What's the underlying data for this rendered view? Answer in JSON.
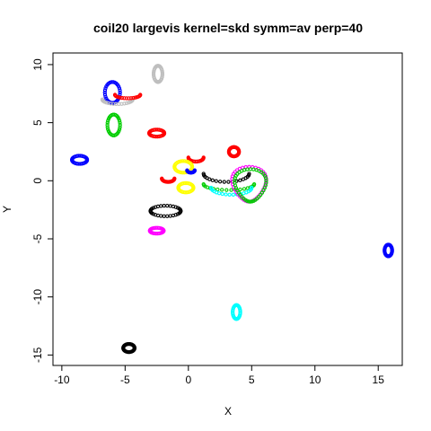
{
  "chart_data": {
    "type": "scatter",
    "title": "coil20 largevis kernel=skd symm=av perp=40",
    "xlabel": "X",
    "ylabel": "Y",
    "xlim": [
      -10.7,
      16.9
    ],
    "ylim": [
      -15.9,
      11.0
    ],
    "x_ticks": [
      -10,
      -5,
      0,
      5,
      10,
      15
    ],
    "y_ticks": [
      -15,
      -10,
      -5,
      0,
      5,
      10
    ],
    "grid": false,
    "legend": "none",
    "series": [
      {
        "color": "#0000ff",
        "shape": "loop",
        "cx": -6.0,
        "cy": 7.6,
        "rx": 0.6,
        "ry": 0.9
      },
      {
        "color": "#0000ff",
        "shape": "loop",
        "cx": -8.6,
        "cy": 1.8,
        "rx": 0.6,
        "ry": 0.35
      },
      {
        "color": "#0000ff",
        "shape": "loop",
        "cx": 15.8,
        "cy": -6.0,
        "rx": 0.3,
        "ry": 0.5
      },
      {
        "color": "#bebebe",
        "shape": "loop",
        "cx": -2.4,
        "cy": 9.2,
        "rx": 0.35,
        "ry": 0.7
      },
      {
        "color": "#bebebe",
        "shape": "arc",
        "cx": -5.6,
        "cy": 7.0,
        "rx": 1.2,
        "ry": 0.4
      },
      {
        "color": "#ff0000",
        "shape": "arc",
        "cx": -4.8,
        "cy": 7.4,
        "rx": 1.0,
        "ry": 0.3
      },
      {
        "color": "#00cd00",
        "shape": "loop",
        "cx": -5.9,
        "cy": 4.8,
        "rx": 0.5,
        "ry": 0.9
      },
      {
        "color": "#ff0000",
        "shape": "loop",
        "cx": -2.5,
        "cy": 4.1,
        "rx": 0.6,
        "ry": 0.3
      },
      {
        "color": "#ff0000",
        "shape": "loop",
        "cx": 3.6,
        "cy": 2.5,
        "rx": 0.4,
        "ry": 0.4
      },
      {
        "color": "#ff0000",
        "shape": "arc",
        "cx": 0.6,
        "cy": 2.0,
        "rx": 0.6,
        "ry": 0.35
      },
      {
        "color": "#ff0000",
        "shape": "arc",
        "cx": -1.6,
        "cy": 0.2,
        "rx": 0.5,
        "ry": 0.3
      },
      {
        "color": "#ffff00",
        "shape": "loop",
        "cx": -0.4,
        "cy": 1.2,
        "rx": 0.7,
        "ry": 0.5
      },
      {
        "color": "#ffff00",
        "shape": "loop",
        "cx": -0.2,
        "cy": -0.6,
        "rx": 0.6,
        "ry": 0.4
      },
      {
        "color": "#0000ff",
        "shape": "arc",
        "cx": 0.2,
        "cy": 0.9,
        "rx": 0.3,
        "ry": 0.2
      },
      {
        "color": "#000000",
        "shape": "arc",
        "cx": 3.0,
        "cy": 0.6,
        "rx": 1.8,
        "ry": 0.7
      },
      {
        "color": "#00cd00",
        "shape": "arc",
        "cx": 3.2,
        "cy": -0.3,
        "rx": 2.0,
        "ry": 0.5
      },
      {
        "color": "#00ffff",
        "shape": "arc",
        "cx": 3.4,
        "cy": -0.6,
        "rx": 1.6,
        "ry": 0.6
      },
      {
        "color": "#ff00ff",
        "shape": "teardrop",
        "cx": 4.8,
        "cy": -0.3,
        "rx": 1.3,
        "ry": 1.5
      },
      {
        "color": "#00cd00",
        "shape": "teardrop",
        "cx": 4.9,
        "cy": -0.4,
        "rx": 1.2,
        "ry": 1.4
      },
      {
        "color": "#000000",
        "shape": "loop",
        "cx": -1.8,
        "cy": -2.6,
        "rx": 1.2,
        "ry": 0.45
      },
      {
        "color": "#ff00ff",
        "shape": "loop",
        "cx": -2.5,
        "cy": -4.3,
        "rx": 0.55,
        "ry": 0.25
      },
      {
        "color": "#00ffff",
        "shape": "loop",
        "cx": 3.8,
        "cy": -11.3,
        "rx": 0.3,
        "ry": 0.6
      },
      {
        "color": "#000000",
        "shape": "loop",
        "cx": -4.7,
        "cy": -14.4,
        "rx": 0.45,
        "ry": 0.35
      }
    ]
  }
}
